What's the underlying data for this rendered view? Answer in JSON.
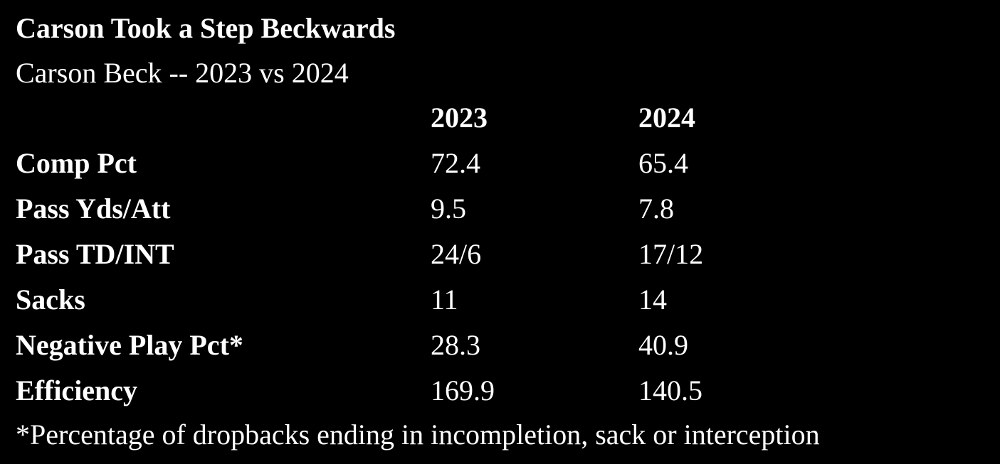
{
  "header": {
    "title": "Carson Took a Step Beckwards",
    "subtitle": "Carson Beck -- 2023 vs 2024"
  },
  "table": {
    "columns": [
      "2023",
      "2024"
    ],
    "rows": [
      [
        "Comp Pct",
        "72.4",
        "65.4"
      ],
      [
        "Pass Yds/Att",
        "9.5",
        "7.8"
      ],
      [
        "Pass TD/INT",
        "24/6",
        "17/12"
      ],
      [
        "Sacks",
        "11",
        "14"
      ],
      [
        "Negative Play Pct*",
        "28.3",
        "40.9"
      ],
      [
        "Efficiency",
        "169.9",
        "140.5"
      ]
    ]
  },
  "footnote": "*Percentage of dropbacks ending in incompletion, sack or interception"
}
